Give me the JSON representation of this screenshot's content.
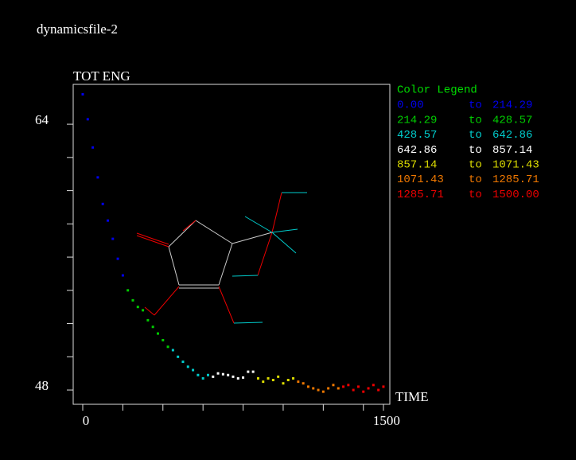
{
  "chart_data": {
    "type": "scatter",
    "title": "dynamicsfile-2",
    "y_label": "TOT ENG",
    "x_label": "TIME",
    "xlim": [
      -47.6,
      1532
    ],
    "ylim": [
      47.14,
      66.4
    ],
    "xticks": [
      0,
      1500
    ],
    "yticks": [
      48,
      64
    ],
    "x_minor_ticks": [
      200,
      400,
      600,
      800,
      1000,
      1200,
      1400
    ],
    "y_minor_ticks": [
      50,
      52,
      54,
      56,
      58,
      60,
      62
    ],
    "x": [
      0,
      25,
      50,
      75,
      100,
      125,
      150,
      175,
      200,
      225,
      250,
      275,
      300,
      325,
      350,
      375,
      400,
      425,
      450,
      475,
      500,
      525,
      550,
      575,
      600,
      625,
      650,
      675,
      700,
      725,
      750,
      775,
      800,
      825,
      850,
      875,
      900,
      925,
      950,
      975,
      1000,
      1025,
      1050,
      1075,
      1100,
      1125,
      1150,
      1175,
      1200,
      1225,
      1250,
      1275,
      1300,
      1325,
      1350,
      1375,
      1400,
      1425,
      1450,
      1475,
      1500
    ],
    "values": [
      65.8,
      64.3,
      62.6,
      60.8,
      59.2,
      58.2,
      57.1,
      55.9,
      54.9,
      54.0,
      53.4,
      53.0,
      52.8,
      52.2,
      51.8,
      51.4,
      51.0,
      50.6,
      50.4,
      50.0,
      49.7,
      49.4,
      49.2,
      48.9,
      48.7,
      48.9,
      48.8,
      49.0,
      48.95,
      48.9,
      48.8,
      48.7,
      48.75,
      49.1,
      49.1,
      48.7,
      48.5,
      48.7,
      48.6,
      48.8,
      48.4,
      48.6,
      48.7,
      48.5,
      48.4,
      48.2,
      48.1,
      48.0,
      47.9,
      48.1,
      48.3,
      48.1,
      48.2,
      48.3,
      48.0,
      48.2,
      47.9,
      48.1,
      48.3,
      48.0,
      48.2
    ],
    "legend": {
      "title": "Color Legend",
      "title_color": "#00dd00",
      "separator": "to",
      "entries": [
        {
          "from": {
            "value": 0,
            "label": "0.00"
          },
          "to": {
            "value": 214.29,
            "label": "214.29"
          },
          "color": "#0000ee"
        },
        {
          "from": {
            "value": 214.29,
            "label": "214.29"
          },
          "to": {
            "value": 428.57,
            "label": "428.57"
          },
          "color": "#00cc00"
        },
        {
          "from": {
            "value": 428.57,
            "label": "428.57"
          },
          "to": {
            "value": 642.86,
            "label": "642.86"
          },
          "color": "#00cccc"
        },
        {
          "from": {
            "value": 642.86,
            "label": "642.86"
          },
          "to": {
            "value": 857.14,
            "label": "857.14"
          },
          "color": "#ffffff"
        },
        {
          "from": {
            "value": 857.14,
            "label": "857.14"
          },
          "to": {
            "value": 1071.43,
            "label": "1071.43"
          },
          "color": "#dddd00"
        },
        {
          "from": {
            "value": 1071.43,
            "label": "1071.43"
          },
          "to": {
            "value": 1285.71,
            "label": "1285.71"
          },
          "color": "#ee7700"
        },
        {
          "from": {
            "value": 1285.71,
            "label": "1285.71"
          },
          "to": {
            "value": 1500,
            "label": "1500.00"
          },
          "color": "#ee0000"
        }
      ]
    }
  }
}
